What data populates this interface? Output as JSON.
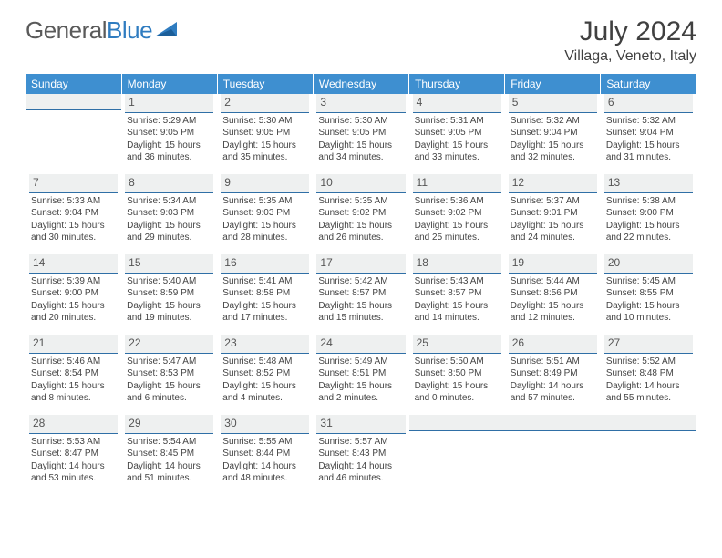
{
  "brand": {
    "part1": "General",
    "part2": "Blue"
  },
  "title": "July 2024",
  "location": "Villaga, Veneto, Italy",
  "colors": {
    "header_bg": "#3e8fd0",
    "header_text": "#ffffff",
    "daynum_bg": "#eef0f0",
    "daynum_border": "#2f6fa6",
    "body_text": "#444444",
    "title_text": "#404040"
  },
  "weekdays": [
    "Sunday",
    "Monday",
    "Tuesday",
    "Wednesday",
    "Thursday",
    "Friday",
    "Saturday"
  ],
  "weeks": [
    [
      null,
      {
        "n": "1",
        "sr": "Sunrise: 5:29 AM",
        "ss": "Sunset: 9:05 PM",
        "dl": "Daylight: 15 hours and 36 minutes."
      },
      {
        "n": "2",
        "sr": "Sunrise: 5:30 AM",
        "ss": "Sunset: 9:05 PM",
        "dl": "Daylight: 15 hours and 35 minutes."
      },
      {
        "n": "3",
        "sr": "Sunrise: 5:30 AM",
        "ss": "Sunset: 9:05 PM",
        "dl": "Daylight: 15 hours and 34 minutes."
      },
      {
        "n": "4",
        "sr": "Sunrise: 5:31 AM",
        "ss": "Sunset: 9:05 PM",
        "dl": "Daylight: 15 hours and 33 minutes."
      },
      {
        "n": "5",
        "sr": "Sunrise: 5:32 AM",
        "ss": "Sunset: 9:04 PM",
        "dl": "Daylight: 15 hours and 32 minutes."
      },
      {
        "n": "6",
        "sr": "Sunrise: 5:32 AM",
        "ss": "Sunset: 9:04 PM",
        "dl": "Daylight: 15 hours and 31 minutes."
      }
    ],
    [
      {
        "n": "7",
        "sr": "Sunrise: 5:33 AM",
        "ss": "Sunset: 9:04 PM",
        "dl": "Daylight: 15 hours and 30 minutes."
      },
      {
        "n": "8",
        "sr": "Sunrise: 5:34 AM",
        "ss": "Sunset: 9:03 PM",
        "dl": "Daylight: 15 hours and 29 minutes."
      },
      {
        "n": "9",
        "sr": "Sunrise: 5:35 AM",
        "ss": "Sunset: 9:03 PM",
        "dl": "Daylight: 15 hours and 28 minutes."
      },
      {
        "n": "10",
        "sr": "Sunrise: 5:35 AM",
        "ss": "Sunset: 9:02 PM",
        "dl": "Daylight: 15 hours and 26 minutes."
      },
      {
        "n": "11",
        "sr": "Sunrise: 5:36 AM",
        "ss": "Sunset: 9:02 PM",
        "dl": "Daylight: 15 hours and 25 minutes."
      },
      {
        "n": "12",
        "sr": "Sunrise: 5:37 AM",
        "ss": "Sunset: 9:01 PM",
        "dl": "Daylight: 15 hours and 24 minutes."
      },
      {
        "n": "13",
        "sr": "Sunrise: 5:38 AM",
        "ss": "Sunset: 9:00 PM",
        "dl": "Daylight: 15 hours and 22 minutes."
      }
    ],
    [
      {
        "n": "14",
        "sr": "Sunrise: 5:39 AM",
        "ss": "Sunset: 9:00 PM",
        "dl": "Daylight: 15 hours and 20 minutes."
      },
      {
        "n": "15",
        "sr": "Sunrise: 5:40 AM",
        "ss": "Sunset: 8:59 PM",
        "dl": "Daylight: 15 hours and 19 minutes."
      },
      {
        "n": "16",
        "sr": "Sunrise: 5:41 AM",
        "ss": "Sunset: 8:58 PM",
        "dl": "Daylight: 15 hours and 17 minutes."
      },
      {
        "n": "17",
        "sr": "Sunrise: 5:42 AM",
        "ss": "Sunset: 8:57 PM",
        "dl": "Daylight: 15 hours and 15 minutes."
      },
      {
        "n": "18",
        "sr": "Sunrise: 5:43 AM",
        "ss": "Sunset: 8:57 PM",
        "dl": "Daylight: 15 hours and 14 minutes."
      },
      {
        "n": "19",
        "sr": "Sunrise: 5:44 AM",
        "ss": "Sunset: 8:56 PM",
        "dl": "Daylight: 15 hours and 12 minutes."
      },
      {
        "n": "20",
        "sr": "Sunrise: 5:45 AM",
        "ss": "Sunset: 8:55 PM",
        "dl": "Daylight: 15 hours and 10 minutes."
      }
    ],
    [
      {
        "n": "21",
        "sr": "Sunrise: 5:46 AM",
        "ss": "Sunset: 8:54 PM",
        "dl": "Daylight: 15 hours and 8 minutes."
      },
      {
        "n": "22",
        "sr": "Sunrise: 5:47 AM",
        "ss": "Sunset: 8:53 PM",
        "dl": "Daylight: 15 hours and 6 minutes."
      },
      {
        "n": "23",
        "sr": "Sunrise: 5:48 AM",
        "ss": "Sunset: 8:52 PM",
        "dl": "Daylight: 15 hours and 4 minutes."
      },
      {
        "n": "24",
        "sr": "Sunrise: 5:49 AM",
        "ss": "Sunset: 8:51 PM",
        "dl": "Daylight: 15 hours and 2 minutes."
      },
      {
        "n": "25",
        "sr": "Sunrise: 5:50 AM",
        "ss": "Sunset: 8:50 PM",
        "dl": "Daylight: 15 hours and 0 minutes."
      },
      {
        "n": "26",
        "sr": "Sunrise: 5:51 AM",
        "ss": "Sunset: 8:49 PM",
        "dl": "Daylight: 14 hours and 57 minutes."
      },
      {
        "n": "27",
        "sr": "Sunrise: 5:52 AM",
        "ss": "Sunset: 8:48 PM",
        "dl": "Daylight: 14 hours and 55 minutes."
      }
    ],
    [
      {
        "n": "28",
        "sr": "Sunrise: 5:53 AM",
        "ss": "Sunset: 8:47 PM",
        "dl": "Daylight: 14 hours and 53 minutes."
      },
      {
        "n": "29",
        "sr": "Sunrise: 5:54 AM",
        "ss": "Sunset: 8:45 PM",
        "dl": "Daylight: 14 hours and 51 minutes."
      },
      {
        "n": "30",
        "sr": "Sunrise: 5:55 AM",
        "ss": "Sunset: 8:44 PM",
        "dl": "Daylight: 14 hours and 48 minutes."
      },
      {
        "n": "31",
        "sr": "Sunrise: 5:57 AM",
        "ss": "Sunset: 8:43 PM",
        "dl": "Daylight: 14 hours and 46 minutes."
      },
      null,
      null,
      null
    ]
  ]
}
